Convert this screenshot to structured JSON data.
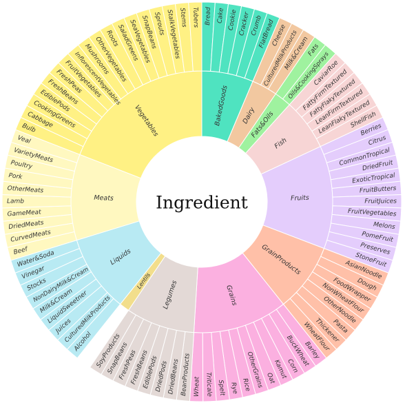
{
  "chart_data": {
    "type": "sunburst",
    "title": "Ingredient",
    "categories": [
      {
        "name": "BakedGoods",
        "color": "#4fe3c0",
        "children": [
          "Bread",
          "Cake",
          "Cookie",
          "Cracker",
          "Crumb",
          "FlatBread"
        ]
      },
      {
        "name": "Dairy",
        "color": "#f2c8a0",
        "children": [
          "Cheese",
          "CulturedMilkProducts",
          "Milk&Cream"
        ]
      },
      {
        "name": "Fats&Oils",
        "color": "#9ff29f",
        "children": [
          "Fats",
          "Oils&CookingSprays"
        ]
      },
      {
        "name": "Fish",
        "color": "#f7d5d5",
        "children": [
          "CaviarRoe",
          "FattyFirmTextured",
          "FattyFlakyTextured",
          "LeanFirmTextured",
          "LeanFlakyTextured",
          "ShellFish"
        ]
      },
      {
        "name": "Fruits",
        "color": "#e4cdfc",
        "children": [
          "Berries",
          "Citrus",
          "CommonTropical",
          "DriedFruit",
          "ExoticTropical",
          "FruitButters",
          "FruitJuices",
          "FruitVegetables",
          "Melons",
          "PomeFruit",
          "Preserves",
          "StoneFruit"
        ]
      },
      {
        "name": "GrainProducts",
        "color": "#ffc0a8",
        "children": [
          "AsianNoodle",
          "Dough",
          "FoodWrapper",
          "NonWheatFlour",
          "OtherNoodle",
          "Pasta",
          "Thickener",
          "WheatFlour"
        ]
      },
      {
        "name": "Grains",
        "color": "#fbb0e0",
        "children": [
          "Barley",
          "BuckWheat",
          "Corn",
          "Kamut",
          "Oat",
          "OtherGrains",
          "Rice",
          "Rye",
          "Spelt",
          "Triticale",
          "Wheat"
        ]
      },
      {
        "name": "Legumes",
        "color": "#e3d9d6",
        "children": [
          "BeanProducts",
          "DriedBeans",
          "DriedPods",
          "EdiblePods",
          "FreshBeans",
          "FreshPeas",
          "SnapBeans",
          "SoyProducts"
        ]
      },
      {
        "name": "Lentils",
        "color": "#f2de8c",
        "children": []
      },
      {
        "name": "Liquids",
        "color": "#b8eaf3",
        "children": [
          "Alcohol",
          "CulturedMilkProducts",
          "Juices",
          "LiquidSweetner",
          "Milk&Cream",
          "NonDairyMilk&Cream",
          "Stocks",
          "Vinegar",
          "Water&Soda"
        ]
      },
      {
        "name": "Meats",
        "color": "#fff8c0",
        "children": [
          "Beef",
          "CurvedMeats",
          "DriedMeats",
          "GameMeat",
          "Lamb",
          "OtherMeats",
          "Pork",
          "Poultry",
          "VarietyMeats",
          "Veal"
        ]
      },
      {
        "name": "Vegetables",
        "color": "#fff184",
        "children": [
          "Bulb",
          "Cabbage",
          "CookingGreens",
          "EdiblePods",
          "FreshBeans",
          "FreshPeas",
          "FruitVegetables",
          "InflorescentVegetables",
          "Mushrooms",
          "OtherVegetables",
          "Roots",
          "SaladGreens",
          "SeaVegetables",
          "SnapBeans",
          "Sprouts",
          "StalkVegetables",
          "Stems",
          "Tubers"
        ]
      }
    ]
  }
}
